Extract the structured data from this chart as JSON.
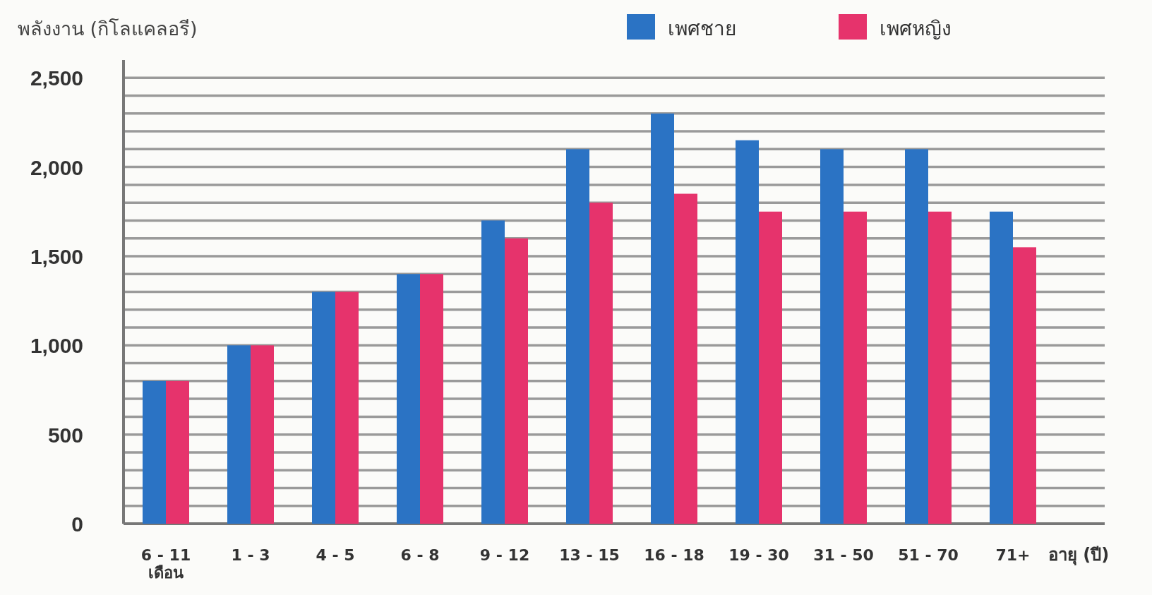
{
  "chart_data": {
    "type": "bar",
    "ylabel": "พลังงาน (กิโลแคลอรี)",
    "xlabel": "อายุ (ปี)",
    "categories": [
      "6 - 11\nเดือน",
      "1 - 3",
      "4 - 5",
      "6 - 8",
      "9 - 12",
      "13 - 15",
      "16 - 18",
      "19 - 30",
      "31 - 50",
      "51 - 70",
      "71+"
    ],
    "series": [
      {
        "name": "เพศชาย",
        "color": "#2b73c4",
        "values": [
          800,
          1000,
          1300,
          1400,
          1700,
          2100,
          2300,
          2150,
          2100,
          2100,
          1750
        ]
      },
      {
        "name": "เพศหญิง",
        "color": "#e6336c",
        "values": [
          800,
          1000,
          1300,
          1400,
          1600,
          1800,
          1850,
          1750,
          1750,
          1750,
          1550
        ]
      }
    ],
    "ylim": [
      0,
      2600
    ],
    "yticks": [
      0,
      {
        "value": 100,
        "label": null
      },
      {
        "value": 200,
        "label": null
      },
      {
        "value": 300,
        "label": null
      },
      {
        "value": 400,
        "label": null
      },
      {
        "value": 500,
        "label": "500"
      },
      {
        "value": 600,
        "label": null
      },
      {
        "value": 700,
        "label": null
      },
      {
        "value": 800,
        "label": null
      },
      {
        "value": 900,
        "label": null
      },
      {
        "value": 1000,
        "label": "1,000"
      },
      {
        "value": 1100,
        "label": null
      },
      {
        "value": 1200,
        "label": null
      },
      {
        "value": 1300,
        "label": null
      },
      {
        "value": 1400,
        "label": null
      },
      {
        "value": 1500,
        "label": "1,500"
      },
      {
        "value": 1600,
        "label": null
      },
      {
        "value": 1700,
        "label": null
      },
      {
        "value": 1800,
        "label": null
      },
      {
        "value": 1900,
        "label": null
      },
      {
        "value": 2000,
        "label": "2,000"
      },
      {
        "value": 2100,
        "label": null
      },
      {
        "value": 2200,
        "label": null
      },
      {
        "value": 2300,
        "label": null
      },
      {
        "value": 2400,
        "label": null
      },
      {
        "value": 2500,
        "label": "2,500"
      }
    ],
    "grid": "y",
    "legend": "top"
  }
}
